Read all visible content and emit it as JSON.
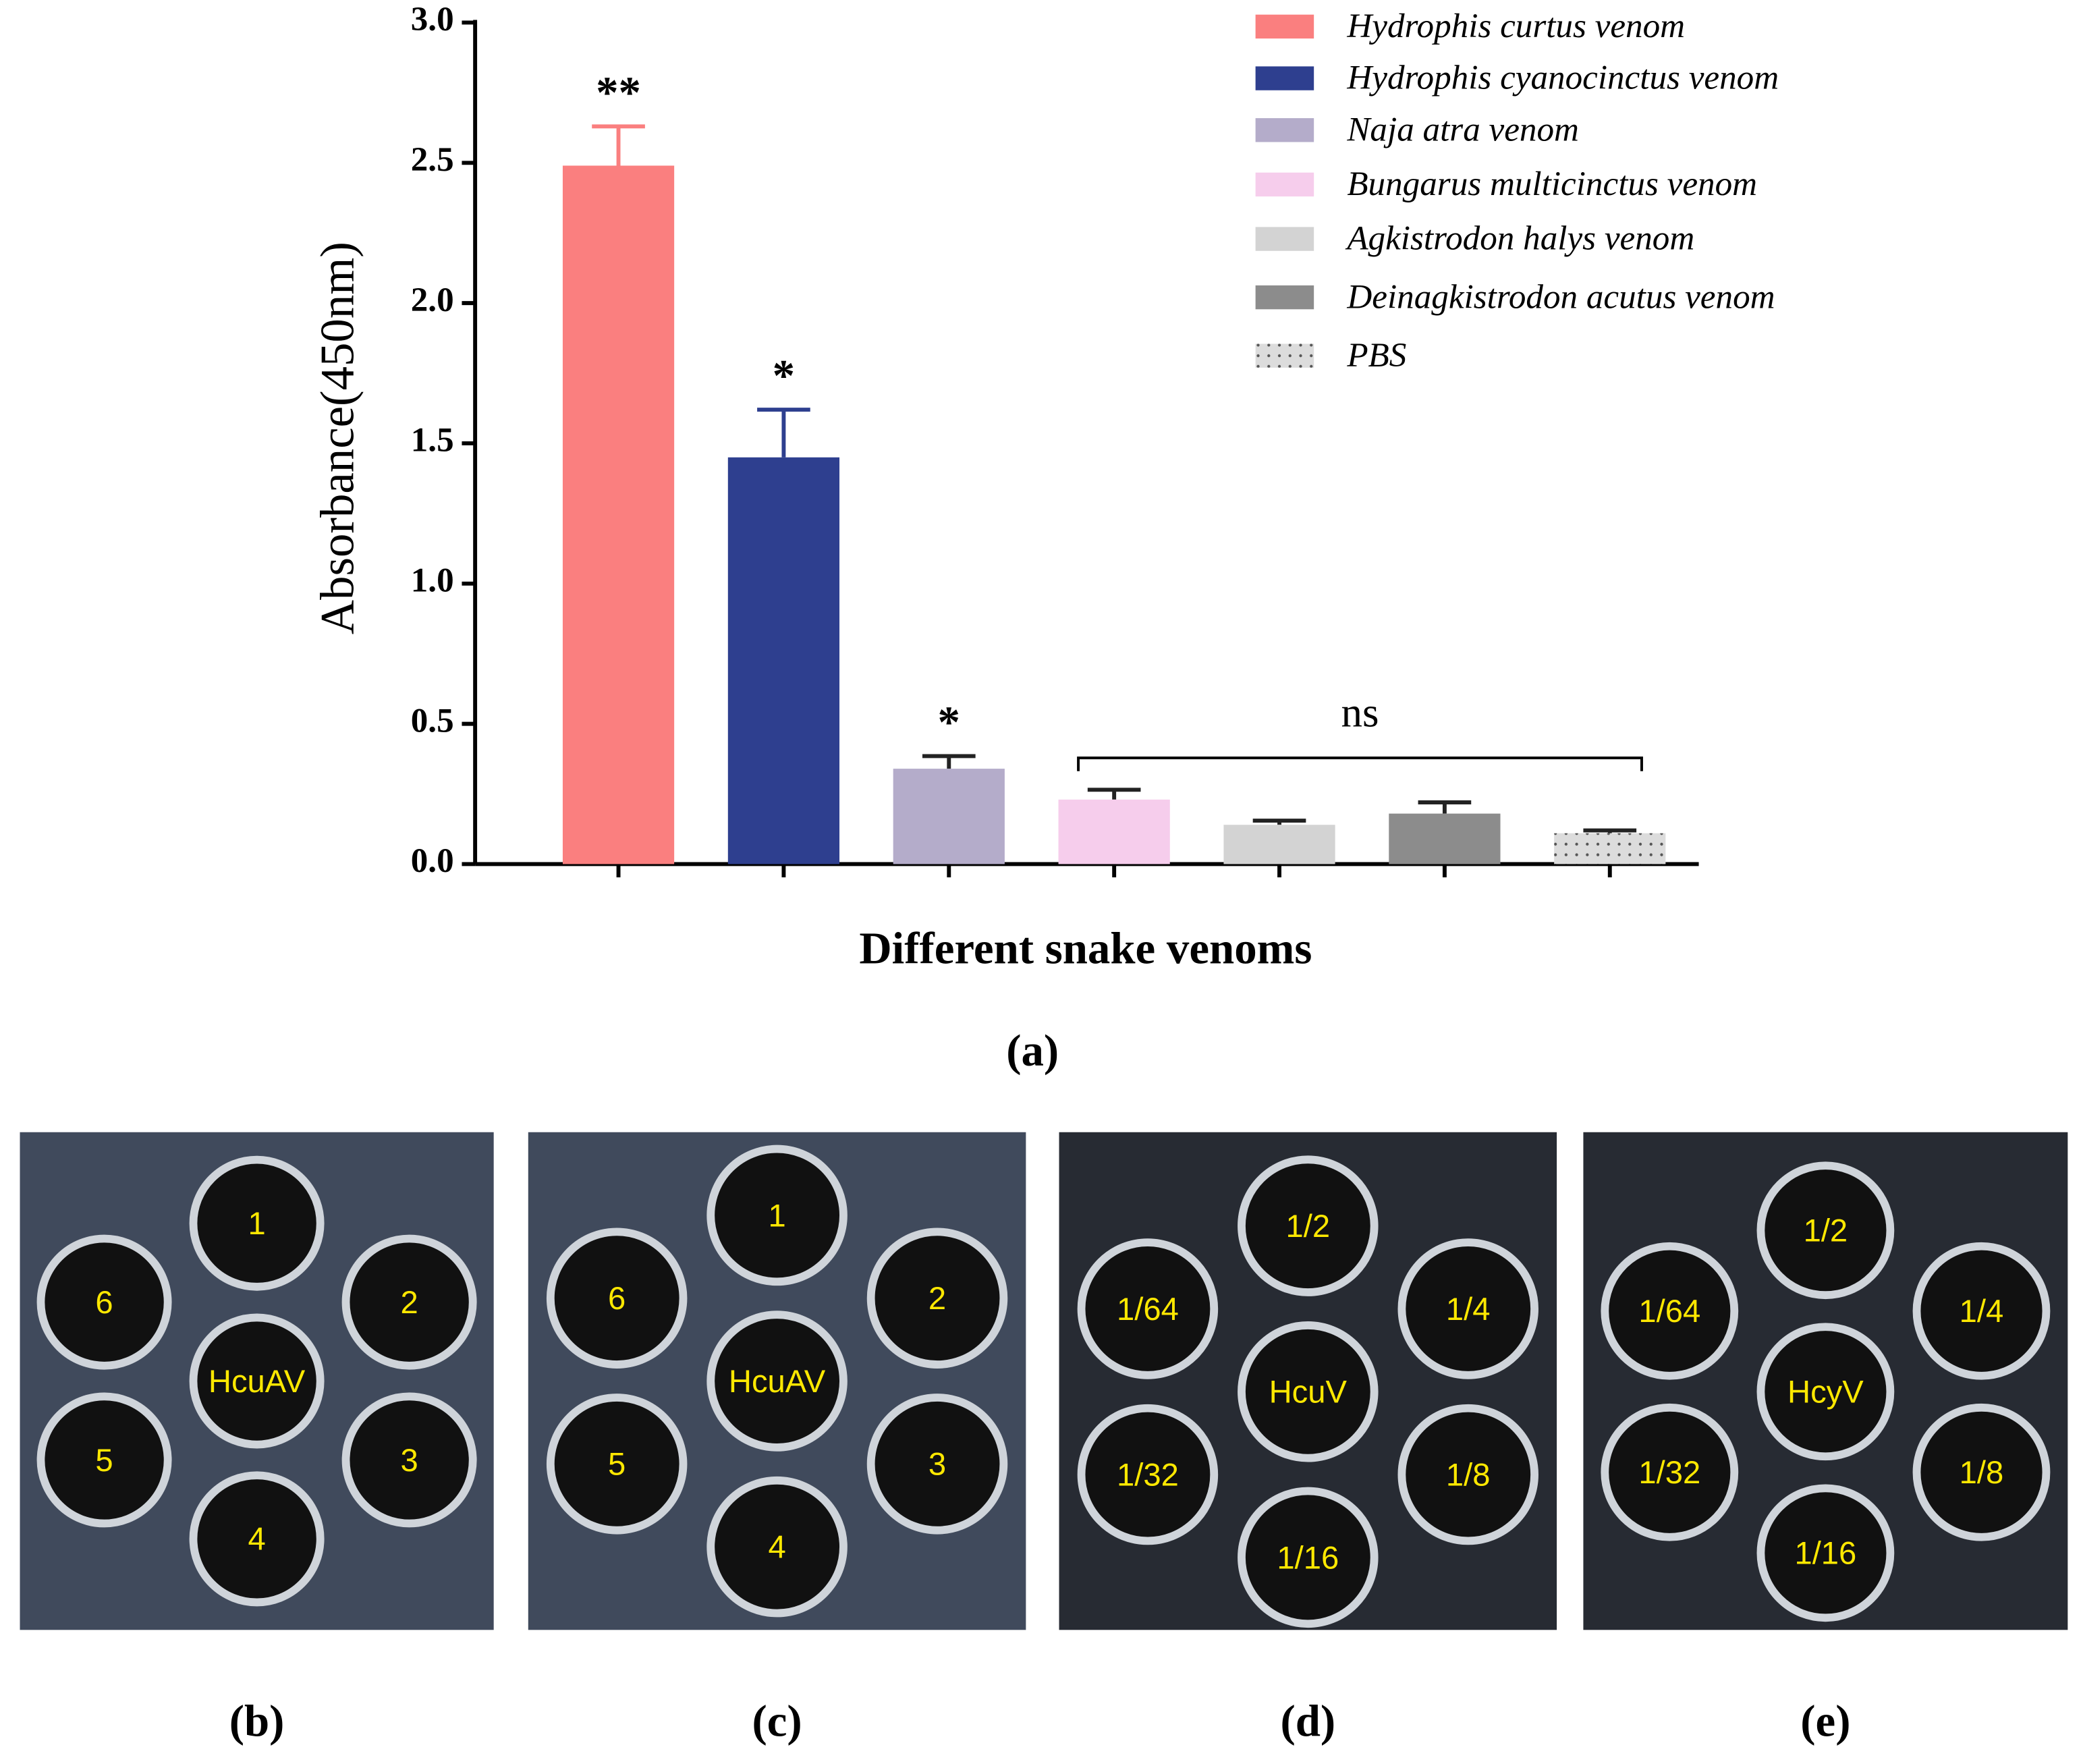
{
  "chart_data": {
    "type": "bar",
    "ylabel": "Absorbance(450nm)",
    "xlabel": "Different snake venoms",
    "panel_label": "(a)",
    "categories": [
      null,
      null,
      null,
      null,
      null,
      null,
      null
    ],
    "names": [
      "Hydrophis curtus venom",
      "Hydrophis cyanocinctus venom",
      "Naja atra venom",
      "Bungarus multicinctus venom",
      "Agkistrodon halys venom",
      "Deinagkistrodon acutus venom",
      "PBS"
    ],
    "colors": [
      "#fa7f7f",
      "#2e3f8f",
      "#b4acca",
      "#f6cdec",
      "#d3d3d3",
      "#8c8c8c",
      "#dcdcdc"
    ],
    "values": [
      2.49,
      1.45,
      0.34,
      0.23,
      0.14,
      0.18,
      0.11
    ],
    "errors": [
      0.14,
      0.17,
      0.045,
      0.035,
      0.015,
      0.04,
      0.01
    ],
    "significance": [
      "**",
      "*",
      "*",
      null,
      null,
      null,
      null
    ],
    "ns_label": "ns",
    "ylim": [
      0,
      3.0
    ],
    "yticks": [
      {
        "value": 0,
        "label": "0.0"
      },
      {
        "value": 0.5,
        "label": "0.5"
      },
      {
        "value": 1,
        "label": "1.0"
      },
      {
        "value": 1.5,
        "label": "1.5"
      },
      {
        "value": 2,
        "label": "2.0"
      },
      {
        "value": 2.5,
        "label": "2.5"
      },
      {
        "value": 3,
        "label": "3.0"
      }
    ]
  },
  "panels": [
    {
      "label": "(b)",
      "center": "HcuAV",
      "wells": [
        "1",
        "2",
        "3",
        "4",
        "5",
        "6"
      ]
    },
    {
      "label": "(c)",
      "center": "HcuAV",
      "wells": [
        "1",
        "2",
        "3",
        "4",
        "5",
        "6"
      ]
    },
    {
      "label": "(d)",
      "center": "HcuV",
      "wells": [
        "1/2",
        "1/4",
        "1/8",
        "1/16",
        "1/32",
        "1/64"
      ]
    },
    {
      "label": "(e)",
      "center": "HcyV",
      "wells": [
        "1/2",
        "1/4",
        "1/8",
        "1/16",
        "1/32",
        "1/64"
      ]
    }
  ]
}
